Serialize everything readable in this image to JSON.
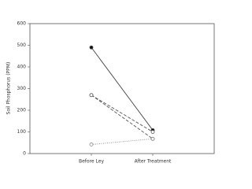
{
  "chart_data": {
    "type": "line",
    "y_label": "Soil Phosphorus (PPM)",
    "categories": [
      "Before Ley",
      "After Treatment"
    ],
    "ylim": [
      0,
      600
    ],
    "yticks": [
      0,
      100,
      200,
      300,
      400,
      500,
      600
    ],
    "series": [
      {
        "color": "#444444",
        "dash": "solid",
        "marker": "circle",
        "marker_fill": "filled",
        "values": [
          490,
          108
        ]
      },
      {
        "color": "#555555",
        "dash": "dashed",
        "marker": "circle",
        "marker_fill": "open",
        "values": [
          270,
          100
        ]
      },
      {
        "color": "#555555",
        "dash": "dashed",
        "marker": "circle",
        "marker_fill": "open",
        "values": [
          270,
          68
        ]
      },
      {
        "color": "#888888",
        "dash": "dotted",
        "marker": "circle",
        "marker_fill": "open",
        "values": [
          42,
          68
        ]
      }
    ]
  }
}
